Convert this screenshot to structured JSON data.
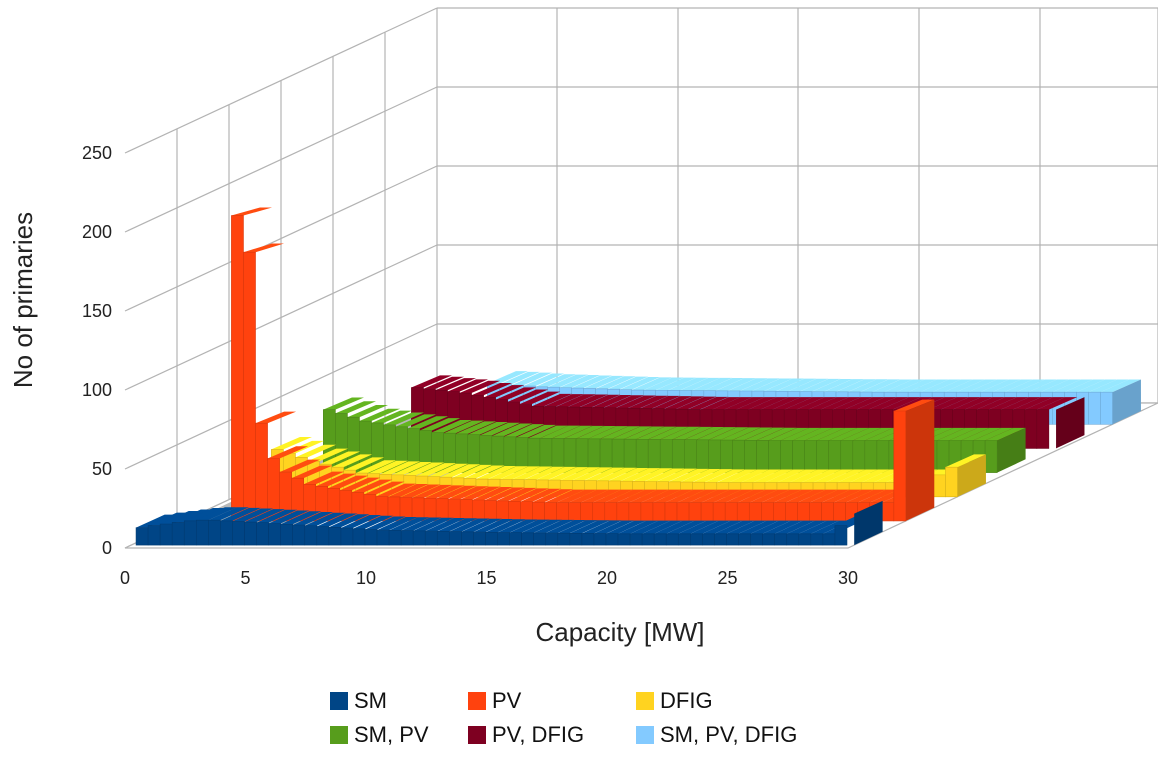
{
  "chart_data": {
    "type": "bar",
    "style": "3d-deep-stepped",
    "xlabel": "Capacity [MW]",
    "ylabel": "No of primaries",
    "ylim": [
      0,
      250
    ],
    "yticks": [
      "0",
      "50",
      "100",
      "150",
      "200",
      "250"
    ],
    "xlim": [
      0,
      30
    ],
    "xticks": [
      "0",
      "5",
      "10",
      "15",
      "20",
      "25",
      "30"
    ],
    "grid": true,
    "legend_position": "bottom",
    "series": [
      {
        "name": "SM",
        "color": "#004586",
        "points": [
          [
            0.2,
            12
          ],
          [
            1,
            15
          ],
          [
            3,
            20
          ],
          [
            5,
            18
          ],
          [
            10,
            12
          ],
          [
            15,
            10
          ],
          [
            20,
            9
          ],
          [
            25,
            9
          ],
          [
            29.5,
            9
          ],
          [
            30,
            25
          ]
        ]
      },
      {
        "name": "PV",
        "color": "#ff420e",
        "points": [
          [
            2,
            250
          ],
          [
            2.4,
            240
          ],
          [
            2.6,
            200
          ],
          [
            2.7,
            150
          ],
          [
            2.9,
            100
          ],
          [
            3.1,
            60
          ],
          [
            4,
            40
          ],
          [
            5,
            30
          ],
          [
            8,
            20
          ],
          [
            15,
            15
          ],
          [
            20,
            15
          ],
          [
            25,
            15
          ],
          [
            29.5,
            15
          ],
          [
            30,
            90
          ]
        ]
      },
      {
        "name": "DFIG",
        "color": "#ffd320",
        "points": [
          [
            1.5,
            40
          ],
          [
            3,
            30
          ],
          [
            5,
            20
          ],
          [
            10,
            15
          ],
          [
            20,
            12
          ],
          [
            29,
            12
          ],
          [
            30,
            25
          ]
        ]
      },
      {
        "name": "SM, PV",
        "color": "#579d1c",
        "points": [
          [
            1.5,
            55
          ],
          [
            3,
            45
          ],
          [
            6,
            35
          ],
          [
            10,
            30
          ],
          [
            20,
            28
          ],
          [
            29.5,
            28
          ]
        ]
      },
      {
        "name": "PV, DFIG",
        "color": "#7e0021",
        "points": [
          [
            3,
            55
          ],
          [
            5,
            50
          ],
          [
            8,
            38
          ],
          [
            15,
            35
          ],
          [
            25,
            35
          ],
          [
            29.8,
            35
          ]
        ]
      },
      {
        "name": "SM, PV, DFIG",
        "color": "#83caff",
        "points": [
          [
            4,
            38
          ],
          [
            6,
            35
          ],
          [
            10,
            32
          ],
          [
            20,
            30
          ],
          [
            30,
            30
          ]
        ]
      }
    ]
  }
}
